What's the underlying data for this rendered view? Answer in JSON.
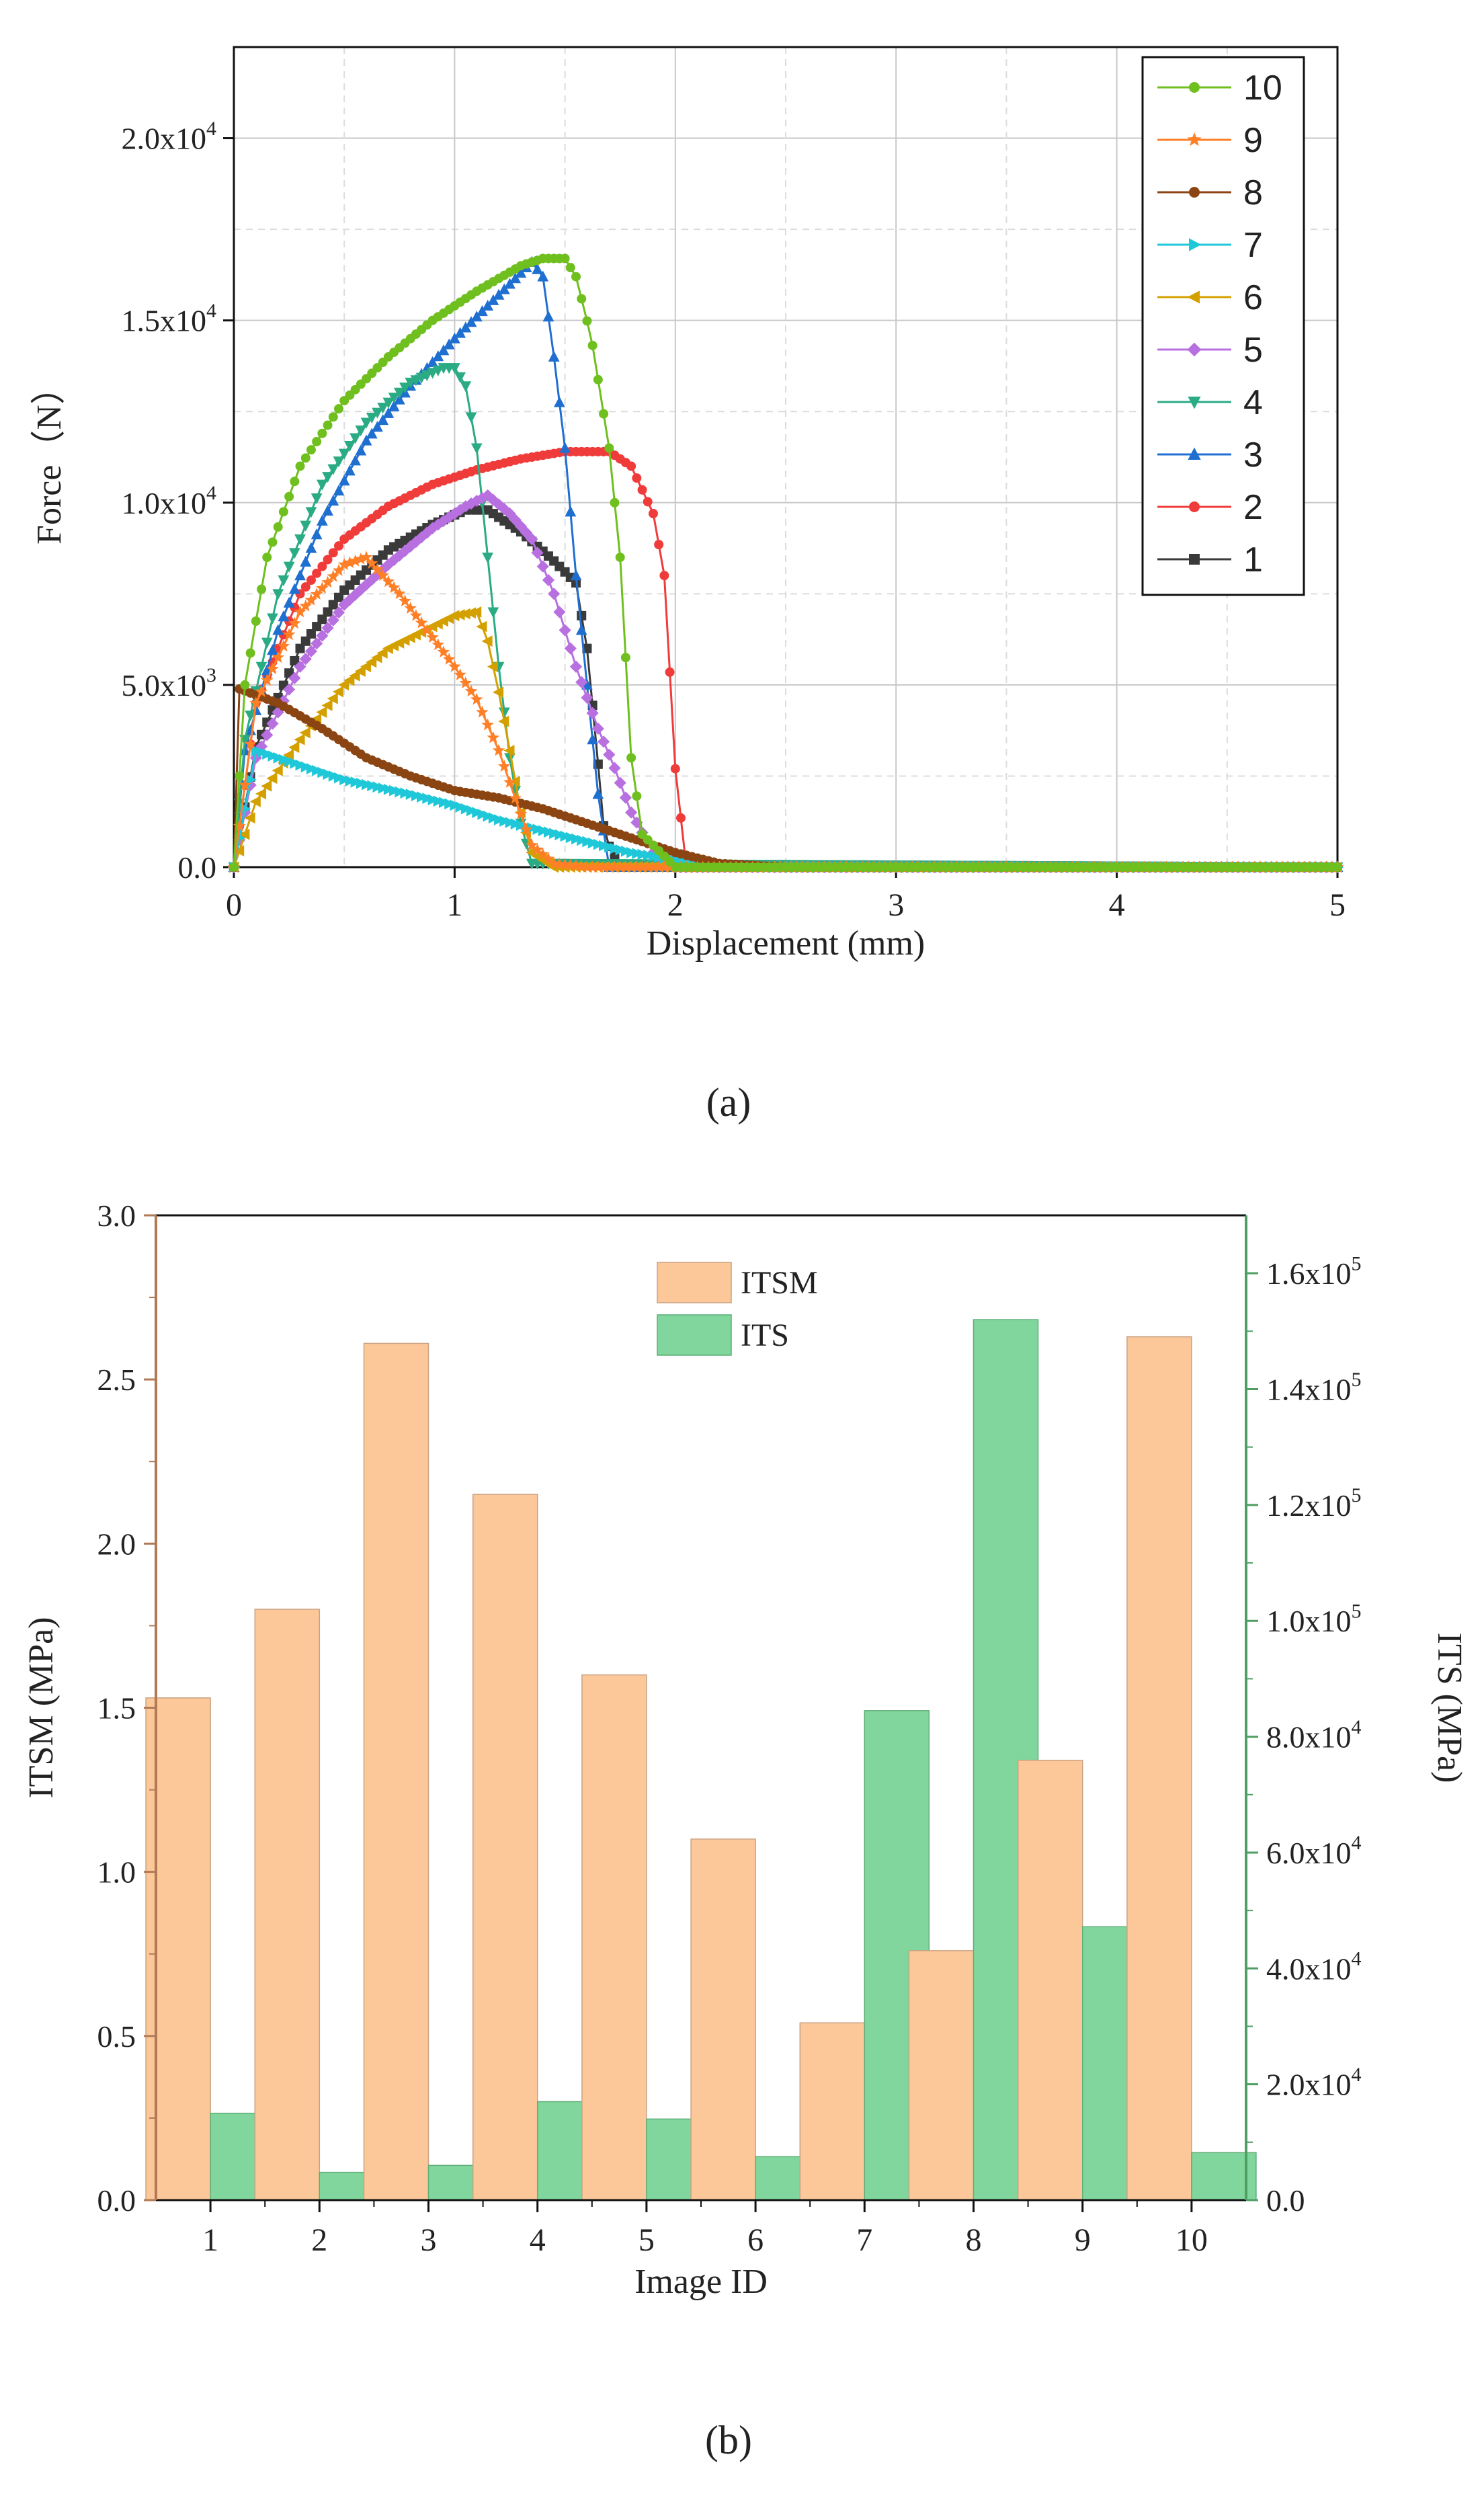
{
  "panel_a_label": "(a)",
  "panel_b_label": "(b)",
  "chart_data": [
    {
      "type": "line",
      "panel": "a",
      "title": "",
      "xlabel": "Displacement (mm)",
      "ylabel": "Force（N）",
      "xlim": [
        0,
        5
      ],
      "ylim": [
        0,
        22500
      ],
      "xticks": [
        "0",
        "1",
        "2",
        "3",
        "4",
        "5"
      ],
      "yticks": [
        {
          "value": 0,
          "label": "0.0"
        },
        {
          "value": 5000,
          "mantissa": "5.0x10",
          "exp": "3"
        },
        {
          "value": 10000,
          "mantissa": "1.0x10",
          "exp": "4"
        },
        {
          "value": 15000,
          "mantissa": "1.5x10",
          "exp": "4"
        },
        {
          "value": 20000,
          "mantissa": "2.0x10",
          "exp": "4"
        }
      ],
      "grid": true,
      "legend_position": "top-right",
      "series": [
        {
          "name": "10",
          "color": "#6fbf1f",
          "marker": "circle",
          "x": [
            0,
            0.05,
            0.15,
            0.3,
            0.5,
            0.7,
            0.9,
            1.1,
            1.3,
            1.4,
            1.5,
            1.55,
            1.62,
            1.7,
            1.75,
            1.8,
            1.85,
            2.0,
            5.0
          ],
          "y": [
            0,
            5000,
            8500,
            11000,
            12800,
            14000,
            15000,
            15800,
            16500,
            16700,
            16700,
            16200,
            14500,
            11500,
            8500,
            3000,
            900,
            0,
            0
          ]
        },
        {
          "name": "9",
          "color": "#ff7f27",
          "marker": "star",
          "x": [
            0,
            0.1,
            0.3,
            0.5,
            0.6,
            0.75,
            0.9,
            1.0,
            1.1,
            1.2,
            1.28,
            1.35,
            1.45,
            1.6,
            5.0
          ],
          "y": [
            0,
            4500,
            7000,
            8300,
            8500,
            7500,
            6300,
            5500,
            4600,
            3200,
            1800,
            600,
            100,
            0,
            0
          ]
        },
        {
          "name": "8",
          "color": "#8b4513",
          "marker": "circle",
          "x": [
            0,
            0.02,
            0.2,
            0.4,
            0.6,
            0.8,
            1.0,
            1.2,
            1.4,
            1.6,
            1.8,
            2.0,
            2.2,
            2.5,
            5.0
          ],
          "y": [
            0,
            4900,
            4500,
            3800,
            3000,
            2500,
            2100,
            1900,
            1600,
            1200,
            800,
            400,
            100,
            0,
            0
          ]
        },
        {
          "name": "7",
          "color": "#1ec8d8",
          "marker": "triangle-right",
          "x": [
            0,
            0.1,
            0.3,
            0.5,
            0.8,
            1.0,
            1.2,
            1.4,
            1.6,
            1.8,
            2.0,
            2.2,
            2.5,
            5.0
          ],
          "y": [
            0,
            3200,
            2800,
            2400,
            2000,
            1700,
            1300,
            1000,
            700,
            400,
            200,
            50,
            0,
            0
          ]
        },
        {
          "name": "6",
          "color": "#d4a000",
          "marker": "triangle-left",
          "x": [
            0,
            0.1,
            0.3,
            0.5,
            0.7,
            0.9,
            1.0,
            1.1,
            1.15,
            1.2,
            1.25,
            1.3,
            1.35,
            1.45,
            5.0
          ],
          "y": [
            0,
            1800,
            3500,
            5000,
            6000,
            6600,
            6900,
            7000,
            6200,
            4800,
            3200,
            1500,
            400,
            0,
            0
          ]
        },
        {
          "name": "5",
          "color": "#b86fe0",
          "marker": "diamond",
          "x": [
            0,
            0.1,
            0.3,
            0.5,
            0.7,
            0.9,
            1.05,
            1.15,
            1.25,
            1.35,
            1.45,
            1.55,
            1.65,
            1.72,
            1.8,
            1.9,
            2.0,
            5.0
          ],
          "y": [
            0,
            3000,
            5500,
            7200,
            8300,
            9300,
            9900,
            10200,
            9700,
            9000,
            7500,
            5500,
            3800,
            2800,
            1500,
            400,
            0,
            0
          ]
        },
        {
          "name": "4",
          "color": "#2bab84",
          "marker": "triangle-down",
          "x": [
            0,
            0.05,
            0.2,
            0.4,
            0.6,
            0.8,
            0.95,
            1.0,
            1.05,
            1.1,
            1.15,
            1.2,
            1.25,
            1.3,
            1.35,
            5.0
          ],
          "y": [
            0,
            3500,
            7500,
            10500,
            12200,
            13300,
            13700,
            13700,
            13200,
            11500,
            8500,
            5500,
            3000,
            1200,
            100,
            0
          ]
        },
        {
          "name": "3",
          "color": "#1f6fd1",
          "marker": "triangle-up",
          "x": [
            0,
            0.05,
            0.2,
            0.4,
            0.6,
            0.8,
            1.0,
            1.2,
            1.35,
            1.4,
            1.45,
            1.5,
            1.55,
            1.6,
            1.65,
            1.7,
            5.0
          ],
          "y": [
            0,
            3200,
            6500,
            9500,
            11700,
            13200,
            14500,
            15700,
            16600,
            16200,
            14000,
            11500,
            8000,
            5000,
            2000,
            0,
            0
          ]
        },
        {
          "name": "2",
          "color": "#f03b3b",
          "marker": "circle",
          "x": [
            0,
            0.1,
            0.3,
            0.5,
            0.7,
            0.9,
            1.1,
            1.3,
            1.5,
            1.7,
            1.8,
            1.9,
            1.95,
            2.0,
            2.05,
            5.0
          ],
          "y": [
            0,
            4500,
            7500,
            9000,
            9900,
            10500,
            10900,
            11200,
            11400,
            11400,
            11000,
            9700,
            8000,
            2700,
            0,
            0
          ]
        },
        {
          "name": "1",
          "color": "#3a3a3a",
          "marker": "square",
          "x": [
            0,
            0.1,
            0.3,
            0.5,
            0.7,
            0.9,
            1.05,
            1.15,
            1.3,
            1.45,
            1.55,
            1.6,
            1.64,
            1.68,
            1.75,
            5.0
          ],
          "y": [
            0,
            3300,
            6000,
            7600,
            8700,
            9400,
            9800,
            9800,
            9200,
            8400,
            7800,
            6000,
            3500,
            800,
            0,
            0
          ]
        }
      ]
    },
    {
      "type": "bar",
      "panel": "b",
      "title": "",
      "xlabel": "Image ID",
      "ylabel": "ITSM (MPa)",
      "y2label": "ITS (MPa)",
      "categories": [
        "1",
        "2",
        "3",
        "4",
        "5",
        "6",
        "7",
        "8",
        "9",
        "10"
      ],
      "ylim": [
        0,
        3.0
      ],
      "y2lim": [
        0,
        170000
      ],
      "yticks": [
        "0.0",
        "0.5",
        "1.0",
        "1.5",
        "2.0",
        "2.5",
        "3.0"
      ],
      "y2ticks": [
        {
          "value": 0,
          "label": "0.0"
        },
        {
          "value": 20000,
          "mantissa": "2.0x10",
          "exp": "4"
        },
        {
          "value": 40000,
          "mantissa": "4.0x10",
          "exp": "4"
        },
        {
          "value": 60000,
          "mantissa": "6.0x10",
          "exp": "4"
        },
        {
          "value": 80000,
          "mantissa": "8.0x10",
          "exp": "4"
        },
        {
          "value": 100000,
          "mantissa": "1.0x10",
          "exp": "5"
        },
        {
          "value": 120000,
          "mantissa": "1.2x10",
          "exp": "5"
        },
        {
          "value": 140000,
          "mantissa": "1.4x10",
          "exp": "5"
        },
        {
          "value": 160000,
          "mantissa": "1.6x10",
          "exp": "5"
        }
      ],
      "legend_position": "top-center",
      "series": [
        {
          "name": "ITSM",
          "axis": "left",
          "color": "#fdc899",
          "values": [
            1.53,
            1.8,
            2.61,
            2.15,
            1.6,
            1.1,
            0.54,
            0.76,
            1.34,
            2.63
          ]
        },
        {
          "name": "ITS",
          "axis": "right",
          "color": "#80d69c",
          "values": [
            15000,
            4800,
            6000,
            17000,
            14000,
            7500,
            84500,
            152000,
            47200,
            8200
          ]
        }
      ]
    }
  ]
}
